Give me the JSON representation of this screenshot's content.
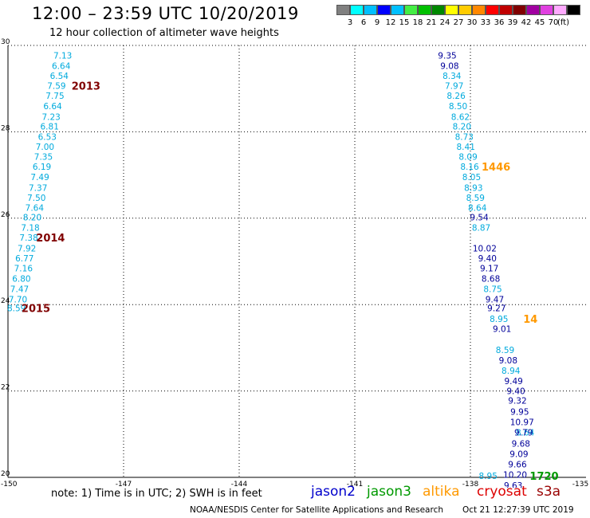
{
  "header": {
    "title": "12:00 – 23:59 UTC 10/20/2019",
    "subtitle": "12 hour collection of altimeter wave heights"
  },
  "legend": {
    "unit": "(ft)",
    "items": [
      {
        "label": "",
        "color": "#808080"
      },
      {
        "label": "3",
        "color": "#00ffff"
      },
      {
        "label": "6",
        "color": "#00bfff"
      },
      {
        "label": "9",
        "color": "#0000ff"
      },
      {
        "label": "12",
        "color": "#00c0ff"
      },
      {
        "label": "15",
        "color": "#44ee44"
      },
      {
        "label": "18",
        "color": "#00c000"
      },
      {
        "label": "21",
        "color": "#008800"
      },
      {
        "label": "24",
        "color": "#ffff00"
      },
      {
        "label": "27",
        "color": "#ffcc00"
      },
      {
        "label": "30",
        "color": "#ff8800"
      },
      {
        "label": "33",
        "color": "#ff0000"
      },
      {
        "label": "36",
        "color": "#c00000"
      },
      {
        "label": "39",
        "color": "#800000"
      },
      {
        "label": "42",
        "color": "#a000a0"
      },
      {
        "label": "45",
        "color": "#e040e0"
      },
      {
        "label": "70",
        "color": "#ffaaff"
      },
      {
        "label": "",
        "color": "#000000"
      }
    ]
  },
  "footer": {
    "note": "note: 1) Time is in UTC; 2) SWH is in feet",
    "satellites": [
      {
        "name": "jason2",
        "color": "#0000cc"
      },
      {
        "name": "jason3",
        "color": "#009900"
      },
      {
        "name": "altika",
        "color": "#ff9900"
      },
      {
        "name": "cryosat",
        "color": "#dd0000"
      },
      {
        "name": "s3a",
        "color": "#990000"
      }
    ],
    "credit": "NOAA/NESDIS Center for Satellite Applications and Research",
    "timestamp": "Oct 21 12:27:39 UTC 2019"
  },
  "chart_data": {
    "type": "scatter",
    "xlim": [
      -150,
      -135
    ],
    "ylim": [
      20,
      30
    ],
    "x_ticks": [
      "-150",
      "-147",
      "-144",
      "-141",
      "-138",
      "-135"
    ],
    "y_ticks": [
      "20",
      "22",
      "24",
      "26",
      "28",
      "30"
    ],
    "grid": true,
    "colors": {
      "cyan": "#00aadd",
      "blue": "#000099",
      "green": "#009900",
      "orange": "#ff9900",
      "darkred": "#800000"
    },
    "series": [
      {
        "color": "cyan",
        "points": [
          [
            -148.58,
            29.77,
            "7.13"
          ],
          [
            -148.62,
            29.53,
            "6.64"
          ],
          [
            -148.67,
            29.3,
            "6.54"
          ],
          [
            -148.74,
            29.07,
            "7.59"
          ],
          [
            -148.78,
            28.84,
            "7.75"
          ],
          [
            -148.84,
            28.6,
            "6.64"
          ],
          [
            -148.88,
            28.35,
            "7.23"
          ],
          [
            -148.92,
            28.13,
            "6.81"
          ],
          [
            -148.98,
            27.89,
            "6.53"
          ],
          [
            -149.04,
            27.66,
            "7.00"
          ],
          [
            -149.08,
            27.43,
            "7.35"
          ],
          [
            -149.12,
            27.2,
            "6.19"
          ],
          [
            -149.17,
            26.96,
            "7.49"
          ],
          [
            -149.22,
            26.71,
            "7.37"
          ],
          [
            -149.26,
            26.48,
            "7.50"
          ],
          [
            -149.31,
            26.25,
            "7.64"
          ],
          [
            -149.37,
            26.02,
            "8.20"
          ],
          [
            -149.42,
            25.78,
            "7.18"
          ],
          [
            -149.46,
            25.55,
            "7.38"
          ],
          [
            -149.51,
            25.3,
            "7.92"
          ],
          [
            -149.57,
            25.07,
            "6.77"
          ],
          [
            -149.6,
            24.84,
            "7.16"
          ],
          [
            -149.65,
            24.6,
            "6.80"
          ],
          [
            -149.7,
            24.36,
            "7.47"
          ],
          [
            -149.74,
            24.12,
            "7.70"
          ],
          [
            -149.78,
            23.92,
            "8.59"
          ],
          [
            -138.48,
            29.3,
            "8.34"
          ],
          [
            -138.42,
            29.07,
            "7.97"
          ],
          [
            -138.37,
            28.84,
            "8.26"
          ],
          [
            -138.32,
            28.6,
            "8.50"
          ],
          [
            -138.26,
            28.35,
            "8.62"
          ],
          [
            -138.22,
            28.13,
            "8.20"
          ],
          [
            -138.16,
            27.89,
            "8.73"
          ],
          [
            -138.12,
            27.66,
            "8.41"
          ],
          [
            -138.06,
            27.43,
            "8.09"
          ],
          [
            -138.02,
            27.2,
            "8.16"
          ],
          [
            -137.97,
            26.96,
            "8.05"
          ],
          [
            -137.92,
            26.71,
            "8.93"
          ],
          [
            -137.87,
            26.48,
            "8.59"
          ],
          [
            -137.82,
            26.25,
            "8.64"
          ],
          [
            -137.72,
            25.78,
            "8.87"
          ],
          [
            -137.42,
            24.36,
            "8.75"
          ],
          [
            -137.26,
            23.67,
            "8.95"
          ],
          [
            -137.1,
            22.95,
            "8.59"
          ],
          [
            -136.95,
            22.47,
            "8.94"
          ],
          [
            -136.58,
            21.04,
            "8.64"
          ],
          [
            -137.54,
            20.04,
            "8.95"
          ]
        ]
      },
      {
        "color": "blue",
        "points": [
          [
            -138.6,
            29.77,
            "9.35"
          ],
          [
            -138.54,
            29.53,
            "9.08"
          ],
          [
            -137.77,
            26.02,
            "9.54"
          ],
          [
            -137.63,
            25.3,
            "10.02"
          ],
          [
            -137.56,
            25.07,
            "9.40"
          ],
          [
            -137.51,
            24.84,
            "9.17"
          ],
          [
            -137.47,
            24.6,
            "8.68"
          ],
          [
            -137.37,
            24.12,
            "9.47"
          ],
          [
            -137.32,
            23.92,
            "9.27"
          ],
          [
            -137.18,
            23.44,
            "9.01"
          ],
          [
            -137.02,
            22.71,
            "9.08"
          ],
          [
            -136.88,
            22.23,
            "9.49"
          ],
          [
            -136.82,
            22.0,
            "9.40"
          ],
          [
            -136.78,
            21.78,
            "9.32"
          ],
          [
            -136.72,
            21.52,
            "9.95"
          ],
          [
            -136.66,
            21.28,
            "10.97"
          ],
          [
            -136.62,
            21.04,
            "9.79"
          ],
          [
            -136.69,
            20.78,
            "9.68"
          ],
          [
            -136.74,
            20.54,
            "9.09"
          ],
          [
            -136.78,
            20.3,
            "9.66"
          ],
          [
            -136.84,
            20.06,
            "10.20"
          ],
          [
            -136.89,
            19.82,
            "9.63"
          ]
        ]
      },
      {
        "color": "green",
        "points": []
      }
    ],
    "pass_labels": [
      {
        "x": -148.35,
        "y": 29.07,
        "text": "2013",
        "color": "darkred"
      },
      {
        "x": -149.27,
        "y": 25.55,
        "text": "2014",
        "color": "darkred"
      },
      {
        "x": -149.65,
        "y": 23.92,
        "text": "2015",
        "color": "darkred"
      },
      {
        "x": -137.71,
        "y": 27.2,
        "text": "1446",
        "color": "orange"
      },
      {
        "x": -136.63,
        "y": 23.67,
        "text": "14",
        "color": "orange"
      },
      {
        "x": -136.46,
        "y": 20.04,
        "text": "1720",
        "color": "green"
      }
    ]
  }
}
